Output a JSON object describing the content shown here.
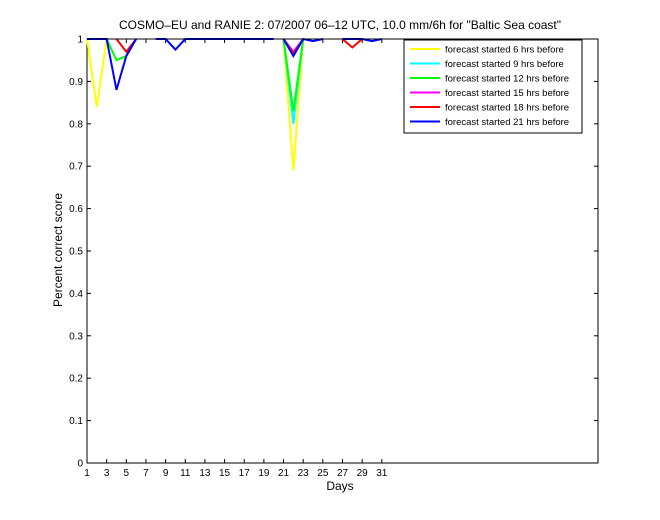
{
  "chart_data": {
    "type": "line",
    "title": "COSMO–EU and RANIE 2: 07/2007 06–12 UTC, 10.0 mm/6h for \"Baltic Sea coast\"",
    "xlabel": "Days",
    "ylabel": "Percent correct score",
    "xlim": [
      1,
      53
    ],
    "ylim": [
      0,
      1
    ],
    "xticks": [
      1,
      3,
      5,
      7,
      9,
      11,
      13,
      15,
      17,
      19,
      21,
      23,
      25,
      27,
      29,
      31
    ],
    "yticks": [
      0,
      0.1,
      0.2,
      0.3,
      0.4,
      0.5,
      0.6,
      0.7,
      0.8,
      0.9,
      1
    ],
    "legend_position": "top-right",
    "grid": false,
    "series": [
      {
        "name": "forecast started 6 hrs before",
        "color": "#ffff00",
        "segments": [
          [
            [
              1,
              1
            ],
            [
              2,
              0.84
            ],
            [
              3,
              1
            ]
          ],
          [
            [
              21,
              1
            ],
            [
              22,
              0.69
            ],
            [
              23,
              1
            ]
          ]
        ]
      },
      {
        "name": "forecast started 9 hrs before",
        "color": "#00ffff",
        "segments": [
          [
            [
              21,
              1
            ],
            [
              22,
              0.8
            ],
            [
              23,
              1
            ]
          ]
        ]
      },
      {
        "name": "forecast started 12 hrs before",
        "color": "#00ff00",
        "segments": [
          [
            [
              3,
              1
            ],
            [
              4,
              0.95
            ],
            [
              5,
              0.96
            ],
            [
              6,
              1
            ]
          ],
          [
            [
              21,
              1
            ],
            [
              22,
              0.83
            ],
            [
              23,
              1
            ]
          ]
        ]
      },
      {
        "name": "forecast started 15 hrs before",
        "color": "#ff00ff",
        "segments": [
          [
            [
              21,
              1
            ],
            [
              22,
              0.97
            ],
            [
              23,
              1
            ]
          ]
        ]
      },
      {
        "name": "forecast started 18 hrs before",
        "color": "#ff0000",
        "segments": [
          [
            [
              4,
              1
            ],
            [
              5,
              0.97
            ],
            [
              6,
              1
            ]
          ],
          [
            [
              21,
              1
            ],
            [
              22,
              0.965
            ],
            [
              23,
              1
            ]
          ],
          [
            [
              27,
              1
            ],
            [
              28,
              0.98
            ],
            [
              29,
              1
            ]
          ]
        ]
      },
      {
        "name": "forecast started 21 hrs before",
        "color": "#0000ff",
        "segments": [
          [
            [
              1,
              1
            ],
            [
              2,
              1
            ],
            [
              3,
              1
            ],
            [
              4,
              0.88
            ],
            [
              5,
              0.96
            ],
            [
              6,
              1
            ]
          ],
          [
            [
              8,
              1
            ],
            [
              9,
              1
            ],
            [
              10,
              0.975
            ],
            [
              11,
              1
            ],
            [
              12,
              1
            ],
            [
              13,
              1
            ],
            [
              14,
              1
            ],
            [
              15,
              1
            ],
            [
              16,
              1
            ],
            [
              17,
              1
            ],
            [
              18,
              1
            ],
            [
              19,
              1
            ],
            [
              20,
              1
            ]
          ],
          [
            [
              21,
              1
            ],
            [
              22,
              0.96
            ],
            [
              23,
              1
            ],
            [
              24,
              0.995
            ],
            [
              25,
              1
            ]
          ],
          [
            [
              27,
              1
            ],
            [
              28,
              1
            ],
            [
              29,
              1
            ],
            [
              30,
              0.995
            ],
            [
              31,
              1
            ]
          ]
        ]
      }
    ]
  }
}
